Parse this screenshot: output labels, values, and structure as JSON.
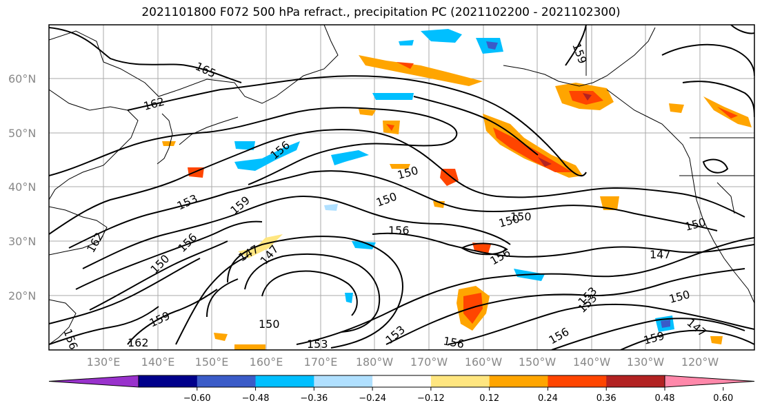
{
  "title": "2021101800 F072 500 hPa refract., precipitation PC (2021102200 - 2021102300)",
  "lat_labels": [
    "60°N",
    "50°N",
    "40°N",
    "30°N",
    "20°N"
  ],
  "lon_labels": [
    "130°E",
    "140°E",
    "150°E",
    "160°E",
    "170°E",
    "180°W",
    "170°W",
    "160°W",
    "150°W",
    "140°W",
    "130°W",
    "120°W"
  ],
  "contour_labels": [
    "165",
    "162",
    "159",
    "156",
    "153",
    "150",
    "147",
    "159",
    "156",
    "150",
    "156",
    "153",
    "150",
    "147",
    "162",
    "159",
    "156",
    "150",
    "153",
    "150",
    "150",
    "156",
    "153",
    "159",
    "147",
    "150",
    "147",
    "150",
    "156",
    "153",
    "156",
    "162"
  ],
  "colorbar": {
    "ticks": [
      "−0.60",
      "−0.48",
      "−0.36",
      "−0.24",
      "−0.12",
      "0.12",
      "0.24",
      "0.36",
      "0.48",
      "0.60"
    ],
    "colors": [
      "#9932cc",
      "#00008b",
      "#3a5bc8",
      "#00bfff",
      "#b0e0ff",
      "#ffffff",
      "#ffe680",
      "#ffa500",
      "#ff4500",
      "#b22222",
      "#ff88aa"
    ]
  }
}
